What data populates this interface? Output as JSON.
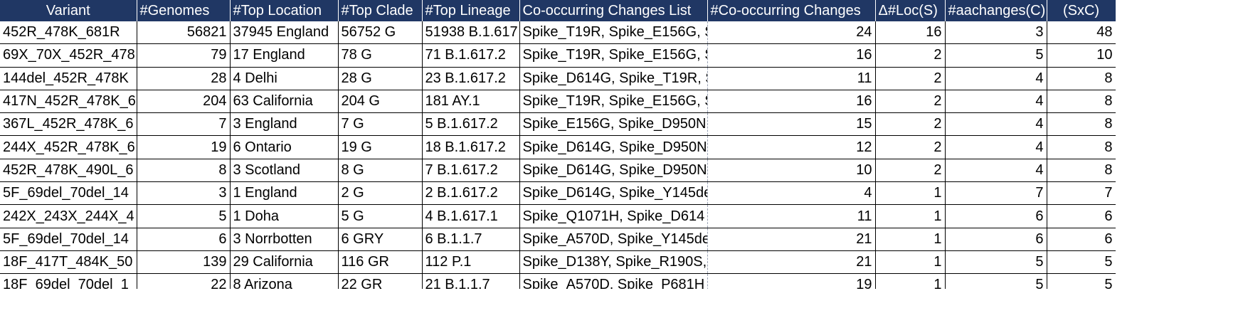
{
  "columns": [
    {
      "key": "variant",
      "label": "Variant",
      "align": "center"
    },
    {
      "key": "genomes",
      "label": "#Genomes",
      "align": "left"
    },
    {
      "key": "top_location",
      "label": "#Top Location",
      "align": "left"
    },
    {
      "key": "top_clade",
      "label": "#Top Clade",
      "align": "left"
    },
    {
      "key": "top_lineage",
      "label": "#Top Lineage",
      "align": "left"
    },
    {
      "key": "cooccurring_list",
      "label": "Co-occurring Changes List",
      "align": "left"
    },
    {
      "key": "cooccurring_count",
      "label": "#Co-occurring Changes",
      "align": "left"
    },
    {
      "key": "delta_loc",
      "label": "Δ#Loc(S)",
      "align": "left"
    },
    {
      "key": "aachanges",
      "label": "#aachanges(C)",
      "align": "left"
    },
    {
      "key": "sxc",
      "label": "(SxC)",
      "align": "center"
    }
  ],
  "rows": [
    [
      "452R_478K_681R",
      "56821",
      "37945 England",
      "56752 G",
      "51938 B.1.617",
      "Spike_T19R, Spike_E156G, S",
      "24",
      "16",
      "3",
      "48"
    ],
    [
      "69X_70X_452R_478",
      "79",
      "17 England",
      "78 G",
      "71 B.1.617.2",
      "Spike_T19R, Spike_E156G, S",
      "16",
      "2",
      "5",
      "10"
    ],
    [
      "144del_452R_478K",
      "28",
      "4 Delhi",
      "28 G",
      "23 B.1.617.2",
      "Spike_D614G, Spike_T19R, S",
      "11",
      "2",
      "4",
      "8"
    ],
    [
      "417N_452R_478K_6",
      "204",
      "63 California",
      "204 G",
      "181 AY.1",
      "Spike_T19R, Spike_E156G, S",
      "16",
      "2",
      "4",
      "8"
    ],
    [
      "367L_452R_478K_6",
      "7",
      "3 England",
      "7 G",
      "5 B.1.617.2",
      "Spike_E156G, Spike_D950N",
      "15",
      "2",
      "4",
      "8"
    ],
    [
      "244X_452R_478K_6",
      "19",
      "6 Ontario",
      "19 G",
      "18 B.1.617.2",
      "Spike_D614G, Spike_D950N",
      "12",
      "2",
      "4",
      "8"
    ],
    [
      "452R_478K_490L_6",
      "8",
      "3 Scotland",
      "8 G",
      "7 B.1.617.2",
      "Spike_D614G, Spike_D950N",
      "10",
      "2",
      "4",
      "8"
    ],
    [
      "5F_69del_70del_14",
      "3",
      "1 England",
      "2 G",
      "2 B.1.617.2",
      "Spike_D614G, Spike_Y145de",
      "4",
      "1",
      "7",
      "7"
    ],
    [
      "242X_243X_244X_4",
      "5",
      "1 Doha",
      "5 G",
      "4 B.1.617.1",
      "Spike_Q1071H, Spike_D614",
      "11",
      "1",
      "6",
      "6"
    ],
    [
      "5F_69del_70del_14",
      "6",
      "3 Norrbotten",
      "6 GRY",
      "6 B.1.1.7",
      "Spike_A570D, Spike_Y145de",
      "21",
      "1",
      "6",
      "6"
    ],
    [
      "18F_417T_484K_50",
      "139",
      "29 California",
      "116 GR",
      "112 P.1",
      "Spike_D138Y, Spike_R190S,",
      "21",
      "1",
      "5",
      "5"
    ],
    [
      "18F_69del_70del_1",
      "22",
      "8 Arizona",
      "22 GR",
      "21 B.1.1.7",
      "Spike_A570D, Spike_P681H",
      "19",
      "1",
      "5",
      "5"
    ]
  ],
  "colors": {
    "header_bg": "#203764",
    "header_text": "#ffffff",
    "grid_line": "#000000"
  }
}
